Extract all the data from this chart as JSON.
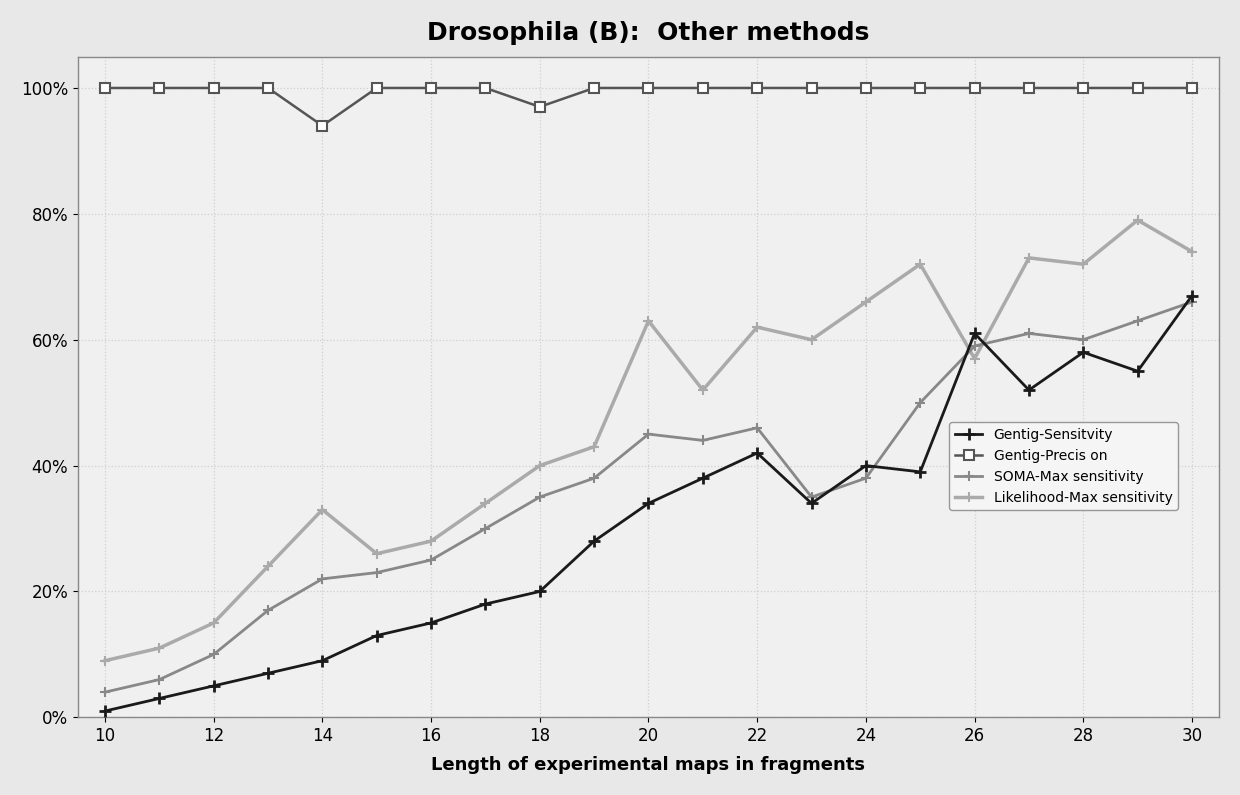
{
  "title": "Drosophila (B):  Other methods",
  "xlabel": "Length of experimental maps in fragments",
  "ylabel": "",
  "x_values": [
    10,
    11,
    12,
    13,
    14,
    15,
    16,
    17,
    18,
    19,
    20,
    21,
    22,
    23,
    24,
    25,
    26,
    27,
    28,
    29,
    30
  ],
  "gentig_sensitivity": [
    0.01,
    0.03,
    0.05,
    0.07,
    0.09,
    0.13,
    0.15,
    0.18,
    0.2,
    0.28,
    0.34,
    0.38,
    0.42,
    0.34,
    0.4,
    0.39,
    0.61,
    0.52,
    0.58,
    0.55,
    0.67
  ],
  "gentig_precision": [
    1.0,
    1.0,
    1.0,
    1.0,
    0.94,
    1.0,
    1.0,
    1.0,
    0.97,
    1.0,
    1.0,
    1.0,
    1.0,
    1.0,
    1.0,
    1.0,
    1.0,
    1.0,
    1.0,
    1.0,
    1.0
  ],
  "soma_max_sensitivity": [
    0.04,
    0.06,
    0.1,
    0.17,
    0.22,
    0.23,
    0.25,
    0.3,
    0.35,
    0.38,
    0.45,
    0.44,
    0.46,
    0.35,
    0.38,
    0.5,
    0.59,
    0.61,
    0.6,
    0.63,
    0.66
  ],
  "likelihood_max_sensitivity": [
    0.09,
    0.11,
    0.15,
    0.24,
    0.33,
    0.26,
    0.28,
    0.34,
    0.4,
    0.43,
    0.63,
    0.52,
    0.62,
    0.6,
    0.66,
    0.72,
    0.57,
    0.73,
    0.72,
    0.79,
    0.74
  ],
  "gentig_sensitivity_color": "#1a1a1a",
  "gentig_precision_color": "#555555",
  "soma_color": "#888888",
  "likelihood_color": "#aaaaaa",
  "background_color": "#e8e8e8",
  "plot_bg_color": "#f0f0f0",
  "grid_color": "#d0d0d0",
  "legend_labels": [
    "Gentig-Sensitvity",
    "Gentig-Precis on",
    "SOMA-Max sensitivity",
    "Likelihood-Max sensitivity"
  ],
  "ylim": [
    0,
    1.05
  ],
  "xlim": [
    9.5,
    30.5
  ],
  "title_fontsize": 18,
  "axis_fontsize": 12,
  "legend_fontsize": 10
}
